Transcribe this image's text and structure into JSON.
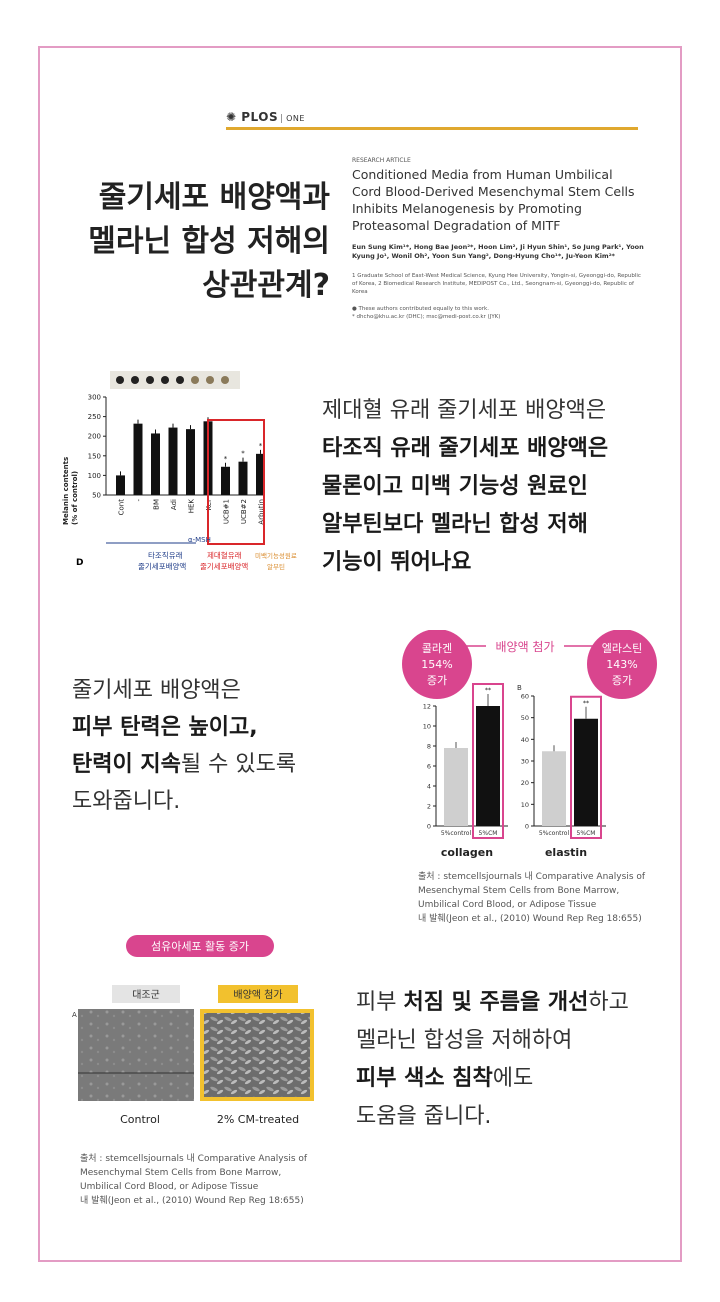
{
  "journal": {
    "name": "PLOS",
    "sub": "ONE"
  },
  "paper": {
    "label": "RESEARCH ARTICLE",
    "title_lines": [
      "Conditioned Media from Human Umbilical",
      "Cord Blood-Derived Mesenchymal Stem Cells",
      "Inhibits Melanogenesis by Promoting",
      "Proteasomal Degradation of MITF"
    ],
    "authors_lines": [
      "Eun Sung Kim¹*, Hong Bae Jeon²*, Hoon Lim², Ji Hyun Shin¹, So Jung Park¹, Yoon",
      "Kyung Jo¹, Wonil Oh², Yoon Sun Yang², Dong-Hyung Cho¹*, Ju-Yeon Kim²*"
    ],
    "affil_lines": [
      "1 Graduate School of East-West Medical Science, Kyung Hee University, Yongin-si, Gyeonggi-do, Republic",
      "of Korea, 2 Biomedical Research Institute, MEDIPOST Co., Ltd., Seongnam-si, Gyeonggi-do, Republic of",
      "Korea"
    ],
    "contrib_lines": [
      "● These authors contributed equally to this work.",
      "* dhcho@khu.ac.kr (DHC); msc@medi-post.co.kr (JYK)"
    ]
  },
  "headline_lines": [
    "줄기세포 배양액과",
    "멜라닌 합성 저해의",
    "상관관계?"
  ],
  "melanin_chart": {
    "panel_label": "D",
    "ylabel": "Melanin contents\n(% of control)",
    "yticks": [
      "300",
      "250",
      "200",
      "150",
      "100",
      "50"
    ],
    "categories": [
      "Cont",
      "-",
      "BM",
      "Adi",
      "HEK",
      "Ker",
      "UCB#1",
      "UCB#2",
      "Arbutin"
    ],
    "values": [
      100,
      232,
      207,
      222,
      218,
      238,
      122,
      135,
      155
    ],
    "ylim": [
      50,
      300
    ],
    "msh_label": "α-MSH",
    "group_labels": [
      "타조직유래",
      "줄기세포배양액",
      "제대혈유래",
      "줄기세포배양액",
      "미백기능성원료",
      "알부틴"
    ]
  },
  "para2": [
    "제대혈 유래 줄기세포 배양액은",
    "타조직 유래 줄기세포 배양액은",
    "물론이고 미백 기능성 원료인",
    "알부틴보다 멜라닌 합성 저해",
    "기능이 뛰어나요"
  ],
  "para3": {
    "l1": "줄기세포 배양액은",
    "l2": "피부 탄력은 높이고,",
    "l3a": "탄력이 지속",
    "l3b": "될 수 있도록",
    "l4": "도와줍니다."
  },
  "elasticity_chart": {
    "badge_left": [
      "콜라겐",
      "154%",
      "증가"
    ],
    "badge_right": [
      "엘라스틴",
      "143%",
      "증가"
    ],
    "add_label": "배양액 첨가",
    "panel_b": "B",
    "collagen": {
      "title": "collagen",
      "yticks": [
        "12",
        "10",
        "8",
        "6",
        "4",
        "2",
        "0"
      ],
      "categories": [
        "5%control",
        "5%CM"
      ],
      "values": [
        7.8,
        12.0
      ],
      "ylim": [
        0,
        12
      ],
      "sig": "**"
    },
    "elastin": {
      "title": "elastin",
      "yticks": [
        "60",
        "50",
        "40",
        "30",
        "20",
        "10",
        "0"
      ],
      "categories": [
        "5%control",
        "5%CM"
      ],
      "values": [
        34.5,
        49.5
      ],
      "ylim": [
        0,
        60
      ],
      "sig": "**"
    }
  },
  "source1": [
    "출처 : stemcellsjournals 내 Comparative Analysis of",
    "Mesenchymal Stem Cells from Bone Marrow,",
    "Umbilical Cord Blood, or Adipose Tissue",
    "내 발췌(Jeon et al., (2010) Wound Rep Reg 18:655)"
  ],
  "micro": {
    "badge": "섬유아세포 활동 증가",
    "panel_a": "A",
    "left_label": "대조군",
    "right_label": "배양액 첨가",
    "left_caption": "Control",
    "right_caption": "2% CM-treated"
  },
  "source2": [
    "출처 : stemcellsjournals 내 Comparative Analysis of",
    "Mesenchymal Stem Cells from Bone Marrow,",
    "Umbilical Cord Blood, or Adipose Tissue",
    "내 발췌(Jeon et al., (2010) Wound Rep Reg 18:655)"
  ],
  "para4": {
    "l1a": "피부 ",
    "l1b": "처짐 및 주름을 개선",
    "l1c": "하고",
    "l2": "멜라닌 합성을 저해하여",
    "l3a": "피부 색소 침착",
    "l3b": "에도",
    "l4": "도움을 줍니다."
  },
  "colors": {
    "border": "#e39cc4",
    "pink": "#d9458e",
    "red": "#d9262a",
    "gold": "#e0a82e",
    "navy": "#1f3c88"
  }
}
